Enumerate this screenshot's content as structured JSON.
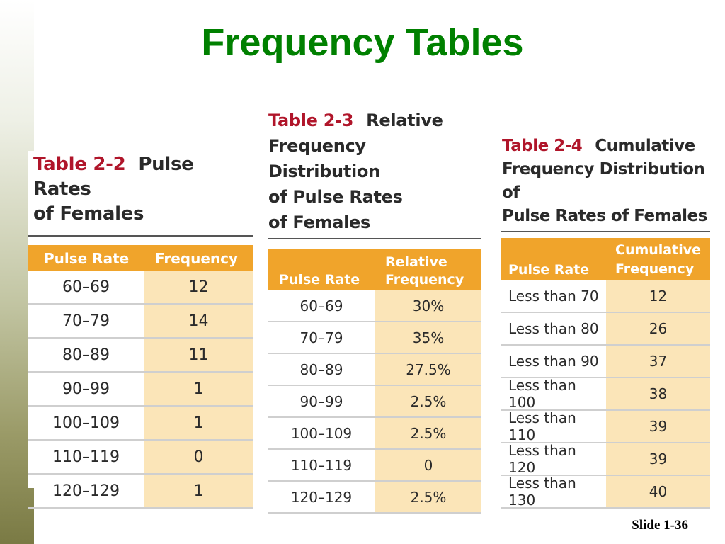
{
  "slide": {
    "title": "Frequency Tables",
    "slide_number": "Slide 1-36"
  },
  "table_2_2": {
    "number": "Table 2-2",
    "caption_line1": "Pulse Rates",
    "caption_line2": "of Females",
    "headers": [
      "Pulse Rate",
      "Frequency"
    ],
    "rows": [
      [
        "60–69",
        "12"
      ],
      [
        "70–79",
        "14"
      ],
      [
        "80–89",
        "11"
      ],
      [
        "90–99",
        "1"
      ],
      [
        "100–109",
        "1"
      ],
      [
        "110–119",
        "0"
      ],
      [
        "120–129",
        "1"
      ]
    ]
  },
  "table_2_3": {
    "number": "Table 2-3",
    "caption_line1": "Relative",
    "caption_line2": "Frequency Distribution",
    "caption_line3": "of Pulse Rates",
    "caption_line4": "of Females",
    "headers": [
      "Pulse Rate",
      "Relative",
      "Frequency"
    ],
    "rows": [
      [
        "60–69",
        "30%"
      ],
      [
        "70–79",
        "35%"
      ],
      [
        "80–89",
        "27.5%"
      ],
      [
        "90–99",
        "2.5%"
      ],
      [
        "100–109",
        "2.5%"
      ],
      [
        "110–119",
        "0"
      ],
      [
        "120–129",
        "2.5%"
      ]
    ]
  },
  "table_2_4": {
    "number": "Table 2-4",
    "caption_line1": "Cumulative",
    "caption_line2": "Frequency Distribution of",
    "caption_line3": "Pulse Rates of Females",
    "headers": [
      "Pulse Rate",
      "Cumulative",
      "Frequency"
    ],
    "rows": [
      [
        "Less than 70",
        "12"
      ],
      [
        "Less than 80",
        "26"
      ],
      [
        "Less than 90",
        "37"
      ],
      [
        "Less than 100",
        "38"
      ],
      [
        "Less than 110",
        "39"
      ],
      [
        "Less than 120",
        "39"
      ],
      [
        "Less than 130",
        "40"
      ]
    ]
  },
  "colors": {
    "title": "#008000",
    "table_number": "#b0152a",
    "header_bg": "#f0a42b",
    "highlight_column": "#fbe5b8"
  }
}
